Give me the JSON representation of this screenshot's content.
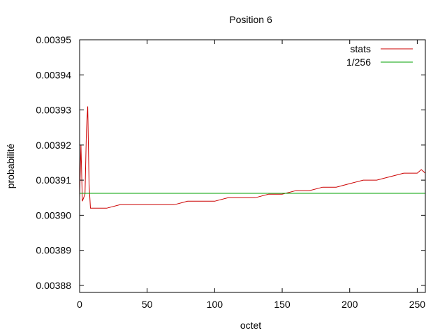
{
  "chart_data": {
    "type": "line",
    "title": "Position 6",
    "xlabel": "octet",
    "ylabel": "probabilité",
    "xlim": [
      0,
      256
    ],
    "ylim": [
      0.003878,
      0.00395
    ],
    "xticks": [
      0,
      50,
      100,
      150,
      200,
      250
    ],
    "yticks": [
      0.00388,
      0.00389,
      0.0039,
      0.00391,
      0.00392,
      0.00393,
      0.00394,
      0.00395
    ],
    "ytick_labels": [
      "0.00388",
      "0.00389",
      "0.00390",
      "0.00391",
      "0.00392",
      "0.00393",
      "0.00394",
      "0.00395"
    ],
    "grid": false,
    "legend_position": "top-right",
    "series": [
      {
        "name": "stats",
        "color": "#cc0000",
        "x": [
          0,
          1,
          2,
          3,
          4,
          5,
          6,
          7,
          8,
          10,
          20,
          30,
          40,
          50,
          60,
          70,
          80,
          90,
          100,
          110,
          120,
          130,
          140,
          150,
          160,
          170,
          180,
          190,
          200,
          210,
          220,
          230,
          240,
          250,
          253,
          256
        ],
        "values": [
          0.003905,
          0.00392,
          0.003904,
          0.003905,
          0.003906,
          0.003924,
          0.003931,
          0.003909,
          0.003902,
          0.003902,
          0.003902,
          0.003903,
          0.003903,
          0.003903,
          0.003903,
          0.003903,
          0.003904,
          0.003904,
          0.003904,
          0.003905,
          0.003905,
          0.003905,
          0.003906,
          0.003906,
          0.003907,
          0.003907,
          0.003908,
          0.003908,
          0.003909,
          0.00391,
          0.00391,
          0.003911,
          0.003912,
          0.003912,
          0.003913,
          0.003912
        ]
      },
      {
        "name": "1/256",
        "color": "#00a000",
        "x": [
          0,
          256
        ],
        "values": [
          0.00390625,
          0.00390625
        ]
      }
    ]
  }
}
